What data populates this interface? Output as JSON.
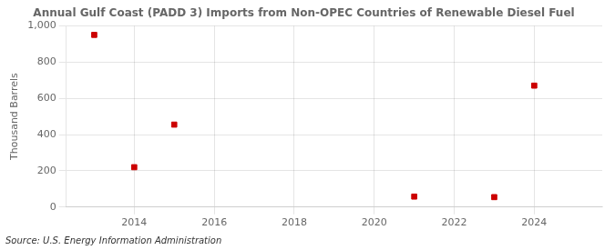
{
  "chart_data": {
    "type": "scatter",
    "title": "Annual Gulf Coast (PADD 3) Imports from Non-OPEC Countries of Renewable Diesel Fuel",
    "ylabel": "Thousand Barrels",
    "annotation": "Source: U.S. Energy Information Administration",
    "x": [
      2013,
      2014,
      2015,
      2021,
      2023,
      2024
    ],
    "values": [
      950,
      220,
      455,
      58,
      55,
      670
    ],
    "color": "#cc0000",
    "marker": "square",
    "xlim": [
      2012.3,
      2025.7
    ],
    "xticks": [
      2014,
      2016,
      2018,
      2020,
      2022,
      2024
    ],
    "ylim": [
      0,
      1000
    ],
    "yticks": [
      0,
      200,
      400,
      600,
      800,
      {
        "value": 1000,
        "label": "1,000"
      }
    ],
    "grid": true
  }
}
